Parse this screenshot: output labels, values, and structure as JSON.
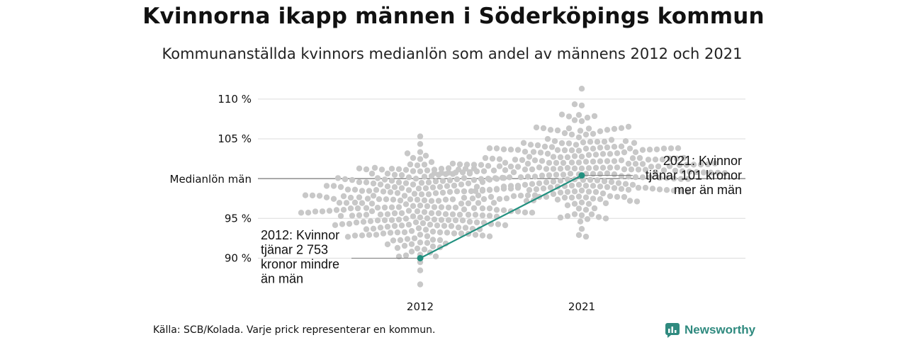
{
  "title": "Kvinnorna ikapp männen i Söderköpings kommun",
  "subtitle": "Kommunanställda kvinnors medianlön som andel av männens 2012 och 2021",
  "source": "Källa: SCB/Kolada. Varje prick representerar en kommun.",
  "brand": "Newsworthy",
  "colors": {
    "accent": "#21907f",
    "dots": "#c8c8c8",
    "grid": "#dcdcdc",
    "median_line": "#555555"
  },
  "chart_data": {
    "type": "scatter",
    "title": "Kvinnorna ikapp männen i Söderköpings kommun",
    "subtitle": "Kommunanställda kvinnors medianlön som andel av männens 2012 och 2021",
    "categories": [
      "2012",
      "2021"
    ],
    "ylim": [
      85.5,
      111.5
    ],
    "y_ticks": [
      {
        "value": 90,
        "label": "90 %"
      },
      {
        "value": 95,
        "label": "95 %"
      },
      {
        "value": 105,
        "label": "105 %"
      },
      {
        "value": 110,
        "label": "110 %"
      }
    ],
    "reference_line": {
      "value": 100,
      "label": "Medianlön män"
    },
    "grid": true,
    "distributions": [
      {
        "category": "2012",
        "count": 290,
        "min": 86.7,
        "max": 105.3,
        "mean": 96.6,
        "sd": 3.1
      },
      {
        "category": "2021",
        "count": 290,
        "min": 92.7,
        "max": 111.3,
        "mean": 101.3,
        "sd": 2.9
      }
    ],
    "highlight": {
      "name": "Söderköping",
      "points": [
        {
          "x": "2012",
          "y": 90.0
        },
        {
          "x": "2021",
          "y": 100.4
        }
      ]
    },
    "annotations": [
      {
        "category": "2012",
        "lines": [
          "2012: Kvinnor",
          "tjänar 2 753",
          "kronor mindre",
          "än män"
        ]
      },
      {
        "category": "2021",
        "lines": [
          "2021: Kvinnor",
          "tjänar 101 kronor",
          "mer än män"
        ]
      }
    ]
  }
}
